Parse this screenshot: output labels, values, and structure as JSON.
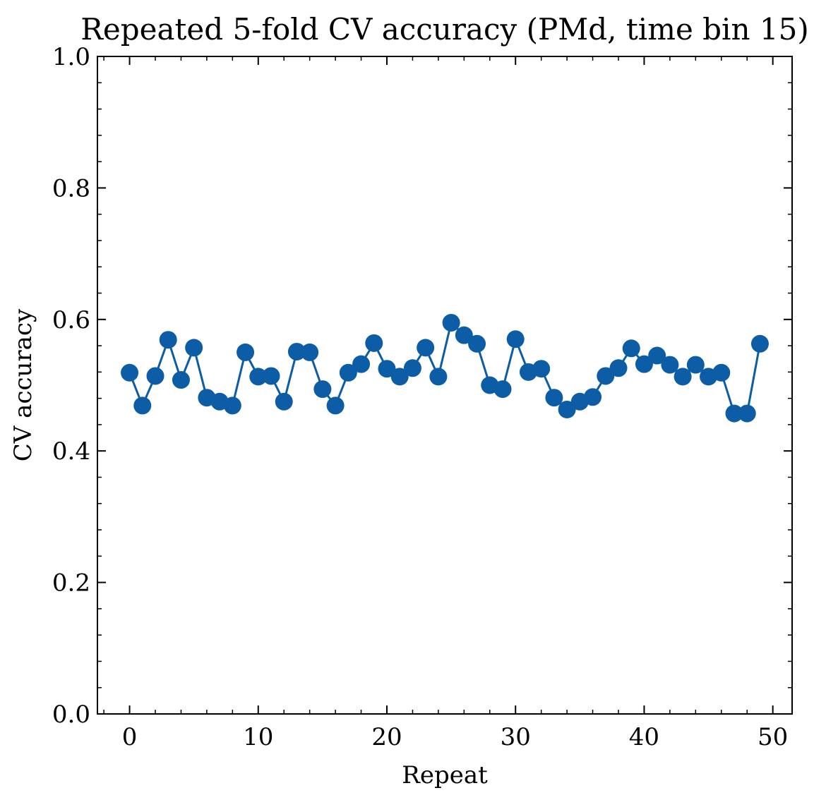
{
  "chart_data": {
    "type": "line",
    "title": "Repeated 5-fold CV accuracy (PMd, time bin 15)",
    "xlabel": "Repeat",
    "ylabel": "CV accuracy",
    "xlim": [
      -2.5,
      51.5
    ],
    "ylim": [
      0.0,
      1.0
    ],
    "x_ticks": [
      0,
      10,
      20,
      30,
      40,
      50
    ],
    "x_tick_labels": [
      "0",
      "10",
      "20",
      "30",
      "40",
      "50"
    ],
    "y_ticks": [
      0.0,
      0.2,
      0.4,
      0.6,
      0.8,
      1.0
    ],
    "y_tick_labels": [
      "0.0",
      "0.2",
      "0.4",
      "0.6",
      "0.8",
      "1.0"
    ],
    "grid": false,
    "color": "#0C5DA5",
    "marker": "circle",
    "series": [
      {
        "x": [
          0,
          1,
          2,
          3,
          4,
          5,
          6,
          7,
          8,
          9,
          10,
          11,
          12,
          13,
          14,
          15,
          16,
          17,
          18,
          19,
          20,
          21,
          22,
          23,
          24,
          25,
          26,
          27,
          28,
          29,
          30,
          31,
          32,
          33,
          34,
          35,
          36,
          37,
          38,
          39,
          40,
          41,
          42,
          43,
          44,
          45,
          46,
          47,
          48,
          49
        ],
        "values": [
          0.519,
          0.469,
          0.514,
          0.569,
          0.508,
          0.557,
          0.481,
          0.475,
          0.469,
          0.55,
          0.513,
          0.514,
          0.475,
          0.551,
          0.55,
          0.494,
          0.469,
          0.519,
          0.532,
          0.564,
          0.525,
          0.513,
          0.526,
          0.557,
          0.513,
          0.595,
          0.576,
          0.563,
          0.5,
          0.494,
          0.57,
          0.52,
          0.525,
          0.481,
          0.463,
          0.475,
          0.482,
          0.514,
          0.526,
          0.556,
          0.532,
          0.545,
          0.531,
          0.513,
          0.531,
          0.513,
          0.519,
          0.457,
          0.457,
          0.563
        ]
      }
    ]
  }
}
